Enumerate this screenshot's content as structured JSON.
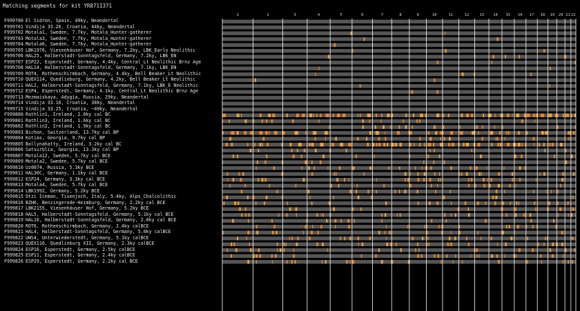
{
  "page": {
    "title": "Matching segments for kit YR8711371"
  },
  "chromosomes": [
    "1",
    "2",
    "3",
    "4",
    "5",
    "6",
    "7",
    "8",
    "9",
    "10",
    "11",
    "12",
    "13",
    "14",
    "15",
    "16",
    "17",
    "18",
    "19",
    "20",
    "21",
    "22"
  ],
  "chromosome_boundaries": [
    0.0,
    0.087,
    0.171,
    0.24,
    0.305,
    0.367,
    0.425,
    0.479,
    0.529,
    0.577,
    0.623,
    0.669,
    0.714,
    0.754,
    0.791,
    0.826,
    0.859,
    0.891,
    0.921,
    0.946,
    0.969,
    0.986,
    1.0
  ],
  "colors": {
    "background": "#000000",
    "track": "#555555",
    "segment": "#e8862a",
    "segment_light": "#f0a040",
    "divider": "#ffffff",
    "text": "#e6e6e6"
  },
  "kits": [
    {
      "code": "F999700",
      "desc": "El Sidron, Spain, 49ky, Neandertal",
      "density": 0.01
    },
    {
      "code": "F999701",
      "desc": "Vindija 33.26, Croatia, 44ky, Neandertal",
      "density": 0.01
    },
    {
      "code": "F999702",
      "desc": "Motala1, Sweden, 7.7ky, Motala_Hunter-gatherer",
      "density": 0.02
    },
    {
      "code": "F999703",
      "desc": "Motala3, Sweden, 7.7ky, Motala_Hunter-gatherer",
      "density": 0.02
    },
    {
      "code": "F999704",
      "desc": "Motala6, Sweden, 7.7ky, Motala_Hunter-gatherer",
      "density": 0.02
    },
    {
      "code": "F999705",
      "desc": "LBK1976, Viesenhäuser Hof, Germany, 7.2ky, LBK_Early Neolithic",
      "density": 0.03
    },
    {
      "code": "F999706",
      "desc": "HAL25, Halberstadt-Sonntagsfeld, Germany, 7.2ky, LBK_EN",
      "density": 0.03
    },
    {
      "code": "F999707",
      "desc": "ESP22, Esperstedt, Germany, 4.4ky, Central_Lt Neolithic Brnz Age",
      "density": 0.03
    },
    {
      "code": "F999708",
      "desc": "HAL14, Halberstadt-Sonntagsfeld, Germany, 7.1ky, LBK_EN",
      "density": 0.02
    },
    {
      "code": "F999709",
      "desc": "ROT4, Rothenschirmbach, Germany, 4.4ky, Bell Beaker_Lt Neolithic",
      "density": 0.03
    },
    {
      "code": "F999710",
      "desc": "QUEX114, Quedlinburg, Germany, 4.2ky, Bell Beaker_Lt Neolithic",
      "density": 0.03
    },
    {
      "code": "F999711",
      "desc": "HAL2, Halberstadt-Sonntagsfeld, Germany, 7.1ky, LBK_E Neolithic",
      "density": 0.03
    },
    {
      "code": "F999712",
      "desc": "ESP4, Esperstedt, Germany, 4.1ky, Central_Lt Neolithic Brnz Age",
      "density": 0.03
    },
    {
      "code": "F999713",
      "desc": "Mezmaiskaya, Adygia, Russia, 29ky, Neandertal",
      "density": 0.0
    },
    {
      "code": "F999714",
      "desc": "Vindija 33.16, Croatia, 38ky, Neandertal",
      "density": 0.0
    },
    {
      "code": "F999715",
      "desc": "Vindija 33.25, Croatia, ~40ky, Neandertal",
      "density": 0.0
    },
    {
      "code": "F999800",
      "desc": "Rathlin1, Ireland, 2.0ky cal BC",
      "density": 0.55
    },
    {
      "code": "F999801",
      "desc": "Rathlin3, Ireland, 1.6ky cal BC",
      "density": 0.12
    },
    {
      "code": "F999802",
      "desc": "Rathlin2, Ireland, 1.9ky cal BC",
      "density": 0.12
    },
    {
      "code": "F999803",
      "desc": "Bichon, Switzerland, 13.7ky cal BP",
      "density": 0.35
    },
    {
      "code": "F999804",
      "desc": "Kotias, Georgia, 9.7ky cal BP",
      "density": 0.18
    },
    {
      "code": "F999805",
      "desc": "Ballynahatty, Ireland, 3.2ky cal BC",
      "density": 0.45
    },
    {
      "code": "F999806",
      "desc": "Satsurblia, Georgia, 13.3ky cal BP",
      "density": 0.12
    },
    {
      "code": "F999807",
      "desc": "Motala12, Sweden, 5.7ky cal BCE",
      "density": 0.2
    },
    {
      "code": "F999809",
      "desc": "Motala2, Sweden, 5.7ky cal BCE",
      "density": 0.14
    },
    {
      "code": "F999810",
      "desc": "Uz0074, Russia, 5.3ky BCE",
      "density": 0.18
    },
    {
      "code": "F999811",
      "desc": "HAL36C, Germany, 1.1ky cal BCE",
      "density": 0.22
    },
    {
      "code": "F999812",
      "desc": "ESP24, Germany, 3.3ky cal BCE",
      "density": 0.2
    },
    {
      "code": "F999813",
      "desc": "Motala4, Sweden, 5.7ky cal BCE",
      "density": 0.18
    },
    {
      "code": "F999814",
      "desc": "LBK1992, Germany, 5.2ky BCE",
      "density": 0.14
    },
    {
      "code": "F999815",
      "desc": "Otzi Iceman, Tisenjoch, Italy, 5.4ky, Alps_Chalcolithic",
      "density": 0.12
    },
    {
      "code": "F999816",
      "desc": "BZH6, Benzingerode-Heimburg, Germany, 2.2ky cal BCE",
      "density": 0.18
    },
    {
      "code": "F999817",
      "desc": "LBK2155, Viesenhäuser Hof, Germany, 5.2ky BCE",
      "density": 0.14
    },
    {
      "code": "F999818",
      "desc": "HAL5, Halberstadt-Sonntagsfeld, Germany, 5.1ky cal BCE",
      "density": 0.2
    },
    {
      "code": "F999819",
      "desc": "HAL16, Halberstadt-Sonntagsfeld, Germany, 2.0ky cal BCE",
      "density": 0.22
    },
    {
      "code": "F999820",
      "desc": "ROT6, Rothenschirmbach, Germany, 2.4ky calBCE",
      "density": 0.18
    },
    {
      "code": "F999821",
      "desc": "HAL4, Halberstadt-Sonntagsfeld, Germany, 5.0ky calBCE",
      "density": 0.2
    },
    {
      "code": "F999822",
      "desc": "UWS4, Unterwiederstedt, Germany, 5.1ky calBCE",
      "density": 0.18
    },
    {
      "code": "F999823",
      "desc": "QUEX116, Quedlinburg XII, Germany, 2.3ky calBCE",
      "density": 0.2
    },
    {
      "code": "F999824",
      "desc": "ESP16, Esperstedt, Germany, 2.5ky calBCE",
      "density": 0.2
    },
    {
      "code": "F999825",
      "desc": "ESP11, Esperstedt, Germany, 2.4ky calBCE",
      "density": 0.18
    },
    {
      "code": "F999826",
      "desc": "ESP29, Esperstedt, Germany, 2.2ky cal BCE",
      "density": 0.2
    }
  ]
}
